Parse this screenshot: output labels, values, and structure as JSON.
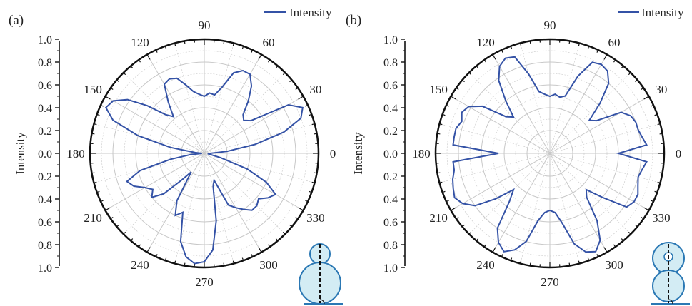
{
  "colors": {
    "series": "#3452a6",
    "axis": "#111111",
    "grid": "#c8c8c8",
    "inset_fill": "#d3ecf4",
    "inset_stroke": "#2b78b4"
  },
  "chart_data": [
    {
      "type": "polar-line",
      "panel_label": "(a)",
      "ylabel": "Intensity",
      "rlim": [
        0,
        1.0
      ],
      "r_tick_labels": [
        "1.0",
        "0.8",
        "0.6",
        "0.4",
        "0.2",
        "0.0",
        "0.2",
        "0.4",
        "0.6",
        "0.8",
        "1.0"
      ],
      "angle_tick_labels": [
        "0",
        "30",
        "60",
        "90",
        "120",
        "150",
        "180",
        "210",
        "240",
        "270",
        "300",
        "330"
      ],
      "legend": "top-right",
      "inset_icon": "snowman-single-cell-icon",
      "series": [
        {
          "name": "Intensity",
          "theta_deg": [
            0,
            5,
            10,
            15,
            20,
            25,
            30,
            35,
            40,
            45,
            50,
            55,
            60,
            65,
            70,
            75,
            80,
            85,
            90,
            95,
            100,
            105,
            110,
            115,
            120,
            125,
            130,
            135,
            140,
            145,
            150,
            155,
            160,
            165,
            170,
            175,
            180,
            185,
            190,
            195,
            200,
            205,
            210,
            215,
            220,
            225,
            230,
            235,
            240,
            245,
            250,
            255,
            260,
            265,
            270,
            275,
            280,
            285,
            290,
            295,
            300,
            305,
            310,
            315,
            320,
            325,
            330,
            335,
            340,
            345,
            350,
            355
          ],
          "r": [
            0.05,
            0.2,
            0.45,
            0.72,
            0.9,
            0.95,
            0.85,
            0.5,
            0.45,
            0.48,
            0.6,
            0.72,
            0.8,
            0.8,
            0.75,
            0.6,
            0.52,
            0.53,
            0.5,
            0.52,
            0.55,
            0.62,
            0.7,
            0.72,
            0.7,
            0.55,
            0.42,
            0.48,
            0.65,
            0.82,
            0.92,
            0.95,
            0.85,
            0.6,
            0.3,
            0.08,
            0.02,
            0.12,
            0.3,
            0.58,
            0.72,
            0.68,
            0.6,
            0.55,
            0.6,
            0.5,
            0.3,
            0.2,
            0.48,
            0.6,
            0.55,
            0.8,
            0.92,
            0.97,
            0.95,
            0.85,
            0.6,
            0.3,
            0.25,
            0.5,
            0.55,
            0.6,
            0.65,
            0.65,
            0.62,
            0.68,
            0.72,
            0.6,
            0.4,
            0.15,
            0.05,
            0.03
          ]
        }
      ]
    },
    {
      "type": "polar-line",
      "panel_label": "(b)",
      "ylabel": "Intensity",
      "rlim": [
        0,
        1.0
      ],
      "r_tick_labels": [
        "1.0",
        "0.8",
        "0.6",
        "0.4",
        "0.2",
        "0.0",
        "0.2",
        "0.4",
        "0.6",
        "0.8",
        "1.0"
      ],
      "angle_tick_labels": [
        "0",
        "30",
        "60",
        "90",
        "120",
        "150",
        "180",
        "210",
        "240",
        "270",
        "300",
        "330"
      ],
      "legend": "top-right",
      "inset_icon": "snowman-double-cell-icon",
      "series": [
        {
          "name": "Intensity",
          "theta_deg": [
            0,
            5,
            10,
            15,
            20,
            25,
            30,
            35,
            40,
            45,
            50,
            55,
            60,
            65,
            70,
            75,
            80,
            85,
            90,
            95,
            100,
            105,
            110,
            115,
            120,
            125,
            130,
            135,
            140,
            145,
            150,
            155,
            160,
            165,
            170,
            175,
            180,
            185,
            190,
            195,
            200,
            205,
            210,
            215,
            220,
            225,
            230,
            235,
            240,
            245,
            250,
            255,
            260,
            265,
            270,
            275,
            280,
            285,
            290,
            295,
            300,
            305,
            310,
            315,
            320,
            325,
            330,
            335,
            340,
            345,
            350,
            355
          ],
          "r": [
            0.6,
            0.85,
            0.82,
            0.8,
            0.8,
            0.78,
            0.72,
            0.5,
            0.45,
            0.62,
            0.8,
            0.88,
            0.9,
            0.88,
            0.72,
            0.52,
            0.5,
            0.52,
            0.5,
            0.52,
            0.55,
            0.72,
            0.9,
            0.92,
            0.88,
            0.78,
            0.6,
            0.45,
            0.5,
            0.72,
            0.82,
            0.85,
            0.82,
            0.85,
            0.85,
            0.85,
            0.45,
            0.85,
            0.85,
            0.88,
            0.9,
            0.92,
            0.88,
            0.8,
            0.62,
            0.45,
            0.55,
            0.8,
            0.9,
            0.95,
            0.9,
            0.8,
            0.6,
            0.52,
            0.5,
            0.52,
            0.62,
            0.82,
            0.92,
            0.95,
            0.88,
            0.72,
            0.5,
            0.45,
            0.6,
            0.82,
            0.85,
            0.85,
            0.82,
            0.8,
            0.82,
            0.85
          ]
        }
      ]
    }
  ]
}
